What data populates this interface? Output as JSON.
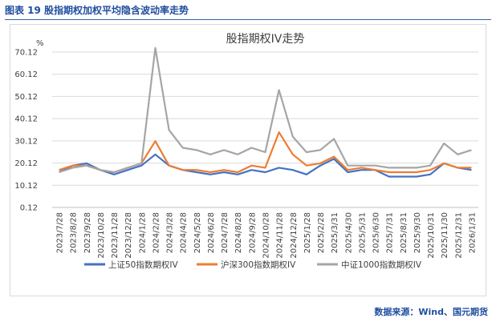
{
  "header": {
    "figure_title": "图表 19  股指期权加权平均隐含波动率走势"
  },
  "source": "数据来源：Wind、国元期货",
  "chart_data": {
    "type": "line",
    "title": "股指期权IV走势",
    "yunit": "%",
    "ylim": [
      0.12,
      70.12
    ],
    "yticks": [
      0.12,
      10.12,
      20.12,
      30.12,
      40.12,
      50.12,
      60.12,
      70.12
    ],
    "xticks": [
      "2023/7/28",
      "2023/8/28",
      "2023/9/28",
      "2023/10/28",
      "2023/11/28",
      "2023/12/28",
      "2024/1/28",
      "2024/2/28",
      "2024/3/28",
      "2024/4/28",
      "2024/5/28",
      "2024/6/28",
      "2024/7/28",
      "2024/8/28",
      "2024/9/28",
      "2024/10/28",
      "2024/11/28",
      "2024/12/28",
      "2025/1/28",
      "2025/2/28",
      "2025/3/31",
      "2025/4/30",
      "2025/5/31",
      "2025/6/30",
      "2025/7/31",
      "2025/8/31",
      "2025/9/30",
      "2025/10/31",
      "2025/11/30",
      "2025/12/31",
      "2026/1/31"
    ],
    "series": [
      {
        "name": "上证50指数期权IV",
        "color": "#4472c4",
        "values": [
          [
            0,
            16
          ],
          [
            1,
            19
          ],
          [
            2,
            20
          ],
          [
            3,
            17
          ],
          [
            4,
            15
          ],
          [
            5,
            17
          ],
          [
            6,
            19
          ],
          [
            7,
            24
          ],
          [
            8,
            19
          ],
          [
            9,
            17
          ],
          [
            10,
            16
          ],
          [
            11,
            15
          ],
          [
            12,
            16
          ],
          [
            13,
            15
          ],
          [
            14,
            17
          ],
          [
            15,
            16
          ],
          [
            16,
            18
          ],
          [
            17,
            17
          ],
          [
            18,
            15
          ],
          [
            19,
            19
          ],
          [
            20,
            22
          ],
          [
            21,
            16
          ],
          [
            22,
            17
          ],
          [
            23,
            17
          ],
          [
            24,
            14
          ],
          [
            25,
            14
          ],
          [
            26,
            14
          ],
          [
            27,
            15
          ],
          [
            28,
            20
          ],
          [
            29,
            18
          ],
          [
            30,
            17
          ]
        ]
      },
      {
        "name": "沪深300指数期权IV",
        "color": "#ed7d31",
        "values": [
          [
            0,
            17
          ],
          [
            1,
            19
          ],
          [
            2,
            19
          ],
          [
            3,
            17
          ],
          [
            4,
            16
          ],
          [
            5,
            18
          ],
          [
            6,
            20
          ],
          [
            7,
            30
          ],
          [
            8,
            19
          ],
          [
            9,
            17
          ],
          [
            10,
            17
          ],
          [
            11,
            16
          ],
          [
            12,
            17
          ],
          [
            13,
            16
          ],
          [
            14,
            19
          ],
          [
            15,
            18
          ],
          [
            16,
            34
          ],
          [
            17,
            24
          ],
          [
            18,
            19
          ],
          [
            19,
            20
          ],
          [
            20,
            23
          ],
          [
            21,
            17
          ],
          [
            22,
            18
          ],
          [
            23,
            17
          ],
          [
            24,
            16
          ],
          [
            25,
            16
          ],
          [
            26,
            16
          ],
          [
            27,
            17
          ],
          [
            28,
            20
          ],
          [
            29,
            18
          ],
          [
            30,
            18
          ]
        ]
      },
      {
        "name": "中证1000指数期权IV",
        "color": "#a5a5a5",
        "values": [
          [
            0,
            16
          ],
          [
            1,
            18
          ],
          [
            2,
            19
          ],
          [
            3,
            17
          ],
          [
            4,
            16
          ],
          [
            5,
            18
          ],
          [
            6,
            20
          ],
          [
            7,
            72
          ],
          [
            8,
            35
          ],
          [
            9,
            27
          ],
          [
            10,
            26
          ],
          [
            11,
            24
          ],
          [
            12,
            26
          ],
          [
            13,
            24
          ],
          [
            14,
            27
          ],
          [
            15,
            25
          ],
          [
            16,
            53
          ],
          [
            17,
            32
          ],
          [
            18,
            25
          ],
          [
            19,
            26
          ],
          [
            20,
            31
          ],
          [
            21,
            19
          ],
          [
            22,
            19
          ],
          [
            23,
            19
          ],
          [
            24,
            18
          ],
          [
            25,
            18
          ],
          [
            26,
            18
          ],
          [
            27,
            19
          ],
          [
            28,
            29
          ],
          [
            29,
            24
          ],
          [
            30,
            26
          ]
        ]
      }
    ],
    "legend_position": "bottom",
    "grid": "horizontal"
  }
}
